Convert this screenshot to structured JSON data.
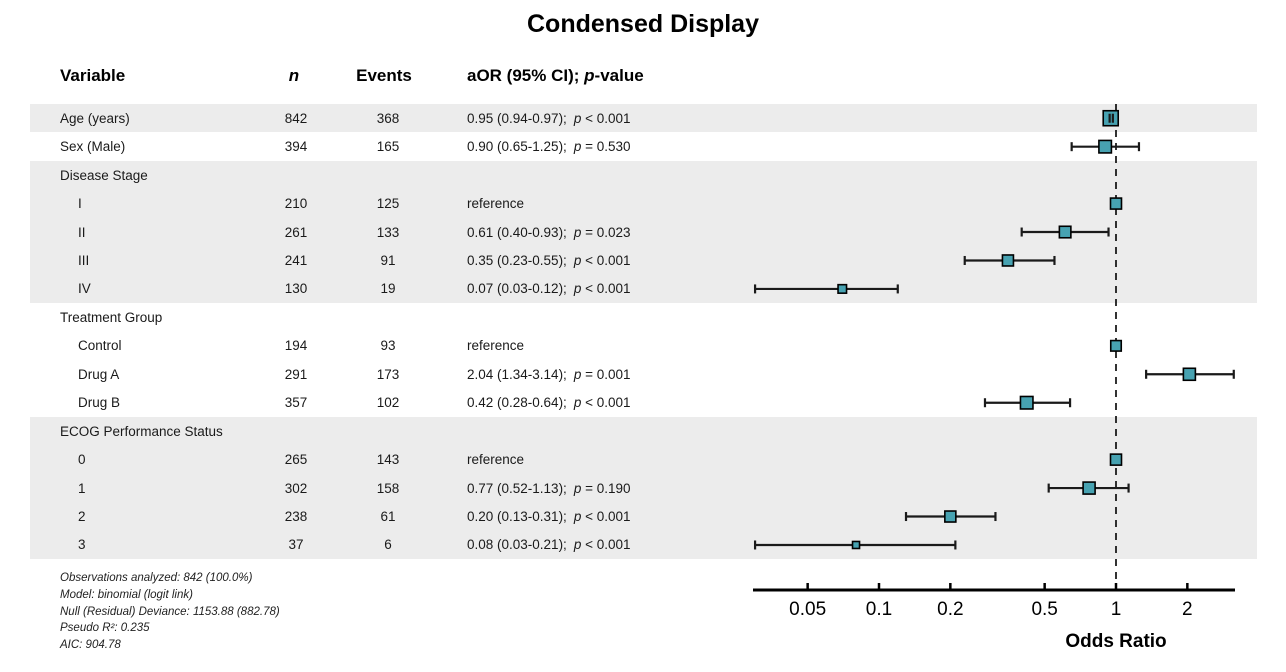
{
  "title": "Condensed Display",
  "columns": {
    "variable": "Variable",
    "n": "n",
    "events": "Events",
    "estimate_prefix": "aOR (95% CI); ",
    "estimate_p": "p",
    "estimate_suffix": "-value"
  },
  "rows": [
    {
      "type": "data",
      "label": "Age (years)",
      "indent": 0,
      "n": "842",
      "events": "368",
      "ci_text": "0.95 (0.94-0.97);",
      "p_text": "< 0.001",
      "or": 0.95,
      "lo": 0.94,
      "hi": 0.97,
      "size": 15,
      "ref": false,
      "stripe": true
    },
    {
      "type": "data",
      "label": "Sex (Male)",
      "indent": 0,
      "n": "394",
      "events": "165",
      "ci_text": "0.90 (0.65-1.25);",
      "p_text": "= 0.530",
      "or": 0.9,
      "lo": 0.65,
      "hi": 1.25,
      "size": 12.5,
      "ref": false,
      "stripe": false
    },
    {
      "type": "group",
      "label": "Disease Stage",
      "indent": 0,
      "stripe": true
    },
    {
      "type": "data",
      "label": "I",
      "indent": 1,
      "n": "210",
      "events": "125",
      "ci_text": "reference",
      "p_text": "",
      "or": 1,
      "ref": true,
      "size": 11,
      "stripe": true
    },
    {
      "type": "data",
      "label": "II",
      "indent": 1,
      "n": "261",
      "events": "133",
      "ci_text": "0.61 (0.40-0.93);",
      "p_text": "= 0.023",
      "or": 0.61,
      "lo": 0.4,
      "hi": 0.93,
      "size": 11.5,
      "ref": false,
      "stripe": true
    },
    {
      "type": "data",
      "label": "III",
      "indent": 1,
      "n": "241",
      "events": "91",
      "ci_text": "0.35 (0.23-0.55);",
      "p_text": "< 0.001",
      "or": 0.35,
      "lo": 0.23,
      "hi": 0.55,
      "size": 11,
      "ref": false,
      "stripe": true
    },
    {
      "type": "data",
      "label": "IV",
      "indent": 1,
      "n": "130",
      "events": "19",
      "ci_text": "0.07 (0.03-0.12);",
      "p_text": "< 0.001",
      "or": 0.07,
      "lo": 0.03,
      "hi": 0.12,
      "size": 8.5,
      "ref": false,
      "stripe": true
    },
    {
      "type": "group",
      "label": "Treatment Group",
      "indent": 0,
      "stripe": false
    },
    {
      "type": "data",
      "label": "Control",
      "indent": 1,
      "n": "194",
      "events": "93",
      "ci_text": "reference",
      "p_text": "",
      "or": 1,
      "ref": true,
      "size": 10.5,
      "stripe": false
    },
    {
      "type": "data",
      "label": "Drug A",
      "indent": 1,
      "n": "291",
      "events": "173",
      "ci_text": "2.04 (1.34-3.14);",
      "p_text": "= 0.001",
      "or": 2.04,
      "lo": 1.34,
      "hi": 3.14,
      "size": 12,
      "ref": false,
      "stripe": false
    },
    {
      "type": "data",
      "label": "Drug B",
      "indent": 1,
      "n": "357",
      "events": "102",
      "ci_text": "0.42 (0.28-0.64);",
      "p_text": "< 0.001",
      "or": 0.42,
      "lo": 0.28,
      "hi": 0.64,
      "size": 12.5,
      "ref": false,
      "stripe": false
    },
    {
      "type": "group",
      "label": "ECOG Performance Status",
      "indent": 0,
      "stripe": true
    },
    {
      "type": "data",
      "label": "0",
      "indent": 1,
      "n": "265",
      "events": "143",
      "ci_text": "reference",
      "p_text": "",
      "or": 1,
      "ref": true,
      "size": 11,
      "stripe": true
    },
    {
      "type": "data",
      "label": "1",
      "indent": 1,
      "n": "302",
      "events": "158",
      "ci_text": "0.77 (0.52-1.13);",
      "p_text": "= 0.190",
      "or": 0.77,
      "lo": 0.52,
      "hi": 1.13,
      "size": 12,
      "ref": false,
      "stripe": true
    },
    {
      "type": "data",
      "label": "2",
      "indent": 1,
      "n": "238",
      "events": "61",
      "ci_text": "0.20 (0.13-0.31);",
      "p_text": "< 0.001",
      "or": 0.2,
      "lo": 0.13,
      "hi": 0.31,
      "size": 11,
      "ref": false,
      "stripe": true
    },
    {
      "type": "data",
      "label": "3",
      "indent": 1,
      "n": "37",
      "events": "6",
      "ci_text": "0.08 (0.03-0.21);",
      "p_text": "< 0.001",
      "or": 0.08,
      "lo": 0.03,
      "hi": 0.21,
      "size": 7,
      "ref": false,
      "stripe": true
    }
  ],
  "footer_lines": [
    "Observations analyzed: 842 (100.0%)",
    "Model: binomial (logit link)",
    "Null (Residual) Deviance: 1153.88 (882.78)",
    "Pseudo R²: 0.235",
    "AIC: 904.78"
  ],
  "axis": {
    "scale": "log",
    "ticks": [
      0.05,
      0.1,
      0.2,
      0.5,
      1,
      2
    ],
    "tick_labels": [
      "0.05",
      "0.1",
      "0.2",
      "0.5",
      "1",
      "2"
    ],
    "label": "Odds Ratio",
    "range": [
      0.028,
      3.2
    ],
    "ref_line": 1,
    "legend_position": "none",
    "grid": false
  },
  "colors": {
    "marker_fill": "#47a2b1",
    "marker_stroke": "#000000",
    "ci_line": "#1a1a1a",
    "stripe": "#ececec",
    "axis": "#000000"
  },
  "chart_data": {
    "type": "scatter",
    "title": "Condensed Display",
    "xlabel": "Odds Ratio",
    "x_scale": "log",
    "x_ticks": [
      0.05,
      0.1,
      0.2,
      0.5,
      1,
      2
    ],
    "reference_line": 1,
    "series": [
      {
        "name": "Age (years)",
        "n": 842,
        "events": 368,
        "or": 0.95,
        "ci_low": 0.94,
        "ci_high": 0.97,
        "p": "< 0.001"
      },
      {
        "name": "Sex (Male)",
        "n": 394,
        "events": 165,
        "or": 0.9,
        "ci_low": 0.65,
        "ci_high": 1.25,
        "p": "= 0.530"
      },
      {
        "name": "Disease Stage: I",
        "n": 210,
        "events": 125,
        "or": 1,
        "reference": true
      },
      {
        "name": "Disease Stage: II",
        "n": 261,
        "events": 133,
        "or": 0.61,
        "ci_low": 0.4,
        "ci_high": 0.93,
        "p": "= 0.023"
      },
      {
        "name": "Disease Stage: III",
        "n": 241,
        "events": 91,
        "or": 0.35,
        "ci_low": 0.23,
        "ci_high": 0.55,
        "p": "< 0.001"
      },
      {
        "name": "Disease Stage: IV",
        "n": 130,
        "events": 19,
        "or": 0.07,
        "ci_low": 0.03,
        "ci_high": 0.12,
        "p": "< 0.001"
      },
      {
        "name": "Treatment Group: Control",
        "n": 194,
        "events": 93,
        "or": 1,
        "reference": true
      },
      {
        "name": "Treatment Group: Drug A",
        "n": 291,
        "events": 173,
        "or": 2.04,
        "ci_low": 1.34,
        "ci_high": 3.14,
        "p": "= 0.001"
      },
      {
        "name": "Treatment Group: Drug B",
        "n": 357,
        "events": 102,
        "or": 0.42,
        "ci_low": 0.28,
        "ci_high": 0.64,
        "p": "< 0.001"
      },
      {
        "name": "ECOG Performance Status: 0",
        "n": 265,
        "events": 143,
        "or": 1,
        "reference": true
      },
      {
        "name": "ECOG Performance Status: 1",
        "n": 302,
        "events": 158,
        "or": 0.77,
        "ci_low": 0.52,
        "ci_high": 1.13,
        "p": "= 0.190"
      },
      {
        "name": "ECOG Performance Status: 2",
        "n": 238,
        "events": 61,
        "or": 0.2,
        "ci_low": 0.13,
        "ci_high": 0.31,
        "p": "< 0.001"
      },
      {
        "name": "ECOG Performance Status: 3",
        "n": 37,
        "events": 6,
        "or": 0.08,
        "ci_low": 0.03,
        "ci_high": 0.21,
        "p": "< 0.001"
      }
    ]
  }
}
